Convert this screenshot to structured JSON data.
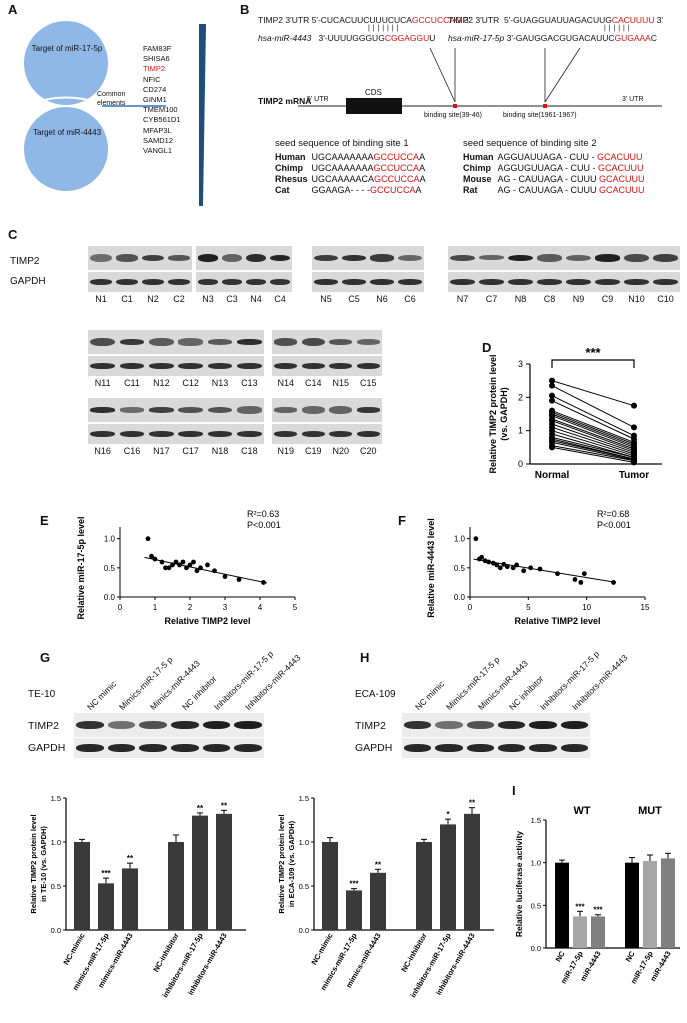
{
  "panels": {
    "A": {
      "letter": "A",
      "circle_top": "Target of miR-17-5p",
      "circle_bottom": "Target of miR-4443",
      "common_label": "Common elements",
      "genes": [
        {
          "name": "FAM83F",
          "highlight": false
        },
        {
          "name": "SHISA6",
          "highlight": false
        },
        {
          "name": "TIMP2",
          "highlight": true
        },
        {
          "name": "NFIC",
          "highlight": false
        },
        {
          "name": "CD274",
          "highlight": false
        },
        {
          "name": "GINM1",
          "highlight": false
        },
        {
          "name": "TMEM100",
          "highlight": false
        },
        {
          "name": "CYB561D1",
          "highlight": false
        },
        {
          "name": "MFAP3L",
          "highlight": false
        },
        {
          "name": "SAMD12",
          "highlight": false
        },
        {
          "name": "VANGL1",
          "highlight": false
        }
      ],
      "circle_color": "#8fb8e6"
    },
    "B": {
      "letter": "B",
      "site1": {
        "timp2_label": "TIMP2 3'UTR",
        "timp2_pre": "5'-CUCACUUCUUUCUCA",
        "timp2_red": "GCCUCCAG",
        "timp2_post": " 3'",
        "mir_label": "hsa-miR-4443",
        "mir_pre": "3'-UUUUGGGUG",
        "mir_red": "CGGAGGU",
        "mir_post": "U"
      },
      "site2": {
        "timp2_label": "TIMP2 3'UTR",
        "timp2_pre": "5'-GUAGGUAUUAGACUUG",
        "timp2_red": "CACUUUU",
        "timp2_post": " 3'",
        "mir_label": "hsa-miR-17-5p",
        "mir_pre": "3'-GAUGGACGUGACAUUC",
        "mir_red": "GUGAAA",
        "mir_post": "C"
      },
      "mrna_label": "TIMP2 mRNA",
      "utr5": "5' UTR",
      "cds": "CDS",
      "utr3": "3' UTR",
      "binding1": "binding site(39-46)",
      "binding2": "binding site(1961-1967)",
      "seed1_title": "seed sequence of binding site 1",
      "seed1_rows": [
        {
          "species": "Human",
          "pre": "UGCAAAAAAA",
          "red": "GCCUCCA",
          "post": "A"
        },
        {
          "species": "Chimp",
          "pre": "UGCAAAAAAA",
          "red": "GCCUCCA",
          "post": "A"
        },
        {
          "species": "Rhesus",
          "pre": "UGCAAAAACA",
          "red": "GCCUCCA",
          "post": "A"
        },
        {
          "species": "Cat",
          "pre": "GGAAGA- - - -",
          "red": "GCCUCCA",
          "post": "A"
        }
      ],
      "seed2_title": "seed sequence of binding site 2",
      "seed2_rows": [
        {
          "species": "Human",
          "pre": "AGGUAUUAGA - CUU - ",
          "red": "GCACUUU",
          "post": ""
        },
        {
          "species": "Chimp",
          "pre": "AGGUGUUAGA - CUU - ",
          "red": "GCACUUU",
          "post": ""
        },
        {
          "species": "Mouse",
          "pre": "AG - CAUUAGA - CUUU ",
          "red": "GCACUUU",
          "post": ""
        },
        {
          "species": "Rat",
          "pre": "AG - CAUUAGA - CUUU ",
          "red": "GCACUUU",
          "post": ""
        }
      ]
    },
    "C": {
      "letter": "C",
      "row_labels": [
        "TIMP2",
        "GAPDH"
      ],
      "blot_rows": [
        {
          "groups": [
            [
              "N1",
              "C1",
              "N2",
              "C2"
            ],
            [
              "N3",
              "C3",
              "N4",
              "C4"
            ],
            [
              "N5",
              "C5",
              "N6",
              "C6"
            ],
            [
              "N7",
              "C7",
              "N8",
              "C8",
              "N9",
              "C9",
              "N10",
              "C10"
            ]
          ]
        },
        {
          "groups": [
            [
              "N11",
              "C11",
              "N12",
              "C12",
              "N13",
              "C13"
            ],
            [
              "N14",
              "C14",
              "N15",
              "C15"
            ]
          ]
        },
        {
          "groups": [
            [
              "N16",
              "C16",
              "N17",
              "C17",
              "N18",
              "C18"
            ],
            [
              "N19",
              "C19",
              "N20",
              "C20"
            ]
          ]
        }
      ]
    },
    "D": {
      "letter": "D",
      "significance": "***",
      "ylabel": "Relative TIMP2 protein level (vs. GAPDH)",
      "xcats": [
        "Normal",
        "Tumor"
      ],
      "yticks": [
        "0",
        "1",
        "2",
        "3"
      ]
    },
    "E": {
      "letter": "E",
      "ylabel": "Relative miR-17-5p level",
      "xlabel": "Relative TIMP2 level",
      "r2": "R²=0.63",
      "p": "P<0.001",
      "xticks": [
        "0",
        "1",
        "2",
        "3",
        "4",
        "5"
      ],
      "yticks": [
        "0.0",
        "0.5",
        "1.0"
      ]
    },
    "F": {
      "letter": "F",
      "ylabel": "Relative miR-4443 level",
      "xlabel": "Relative TIMP2 level",
      "r2": "R²=0.68",
      "p": "P<0.001",
      "xticks": [
        "0",
        "5",
        "10",
        "15"
      ],
      "yticks": [
        "0.0",
        "0.5",
        "1.0"
      ]
    },
    "G": {
      "letter": "G",
      "cell_line": "TE-10",
      "lanes": [
        "NC mimic",
        "Mimics-miR-17-5 p",
        "Mimics-miR-4443",
        "NC inhibitor",
        "Inhibitors-miR-17-5 p",
        "Inhibitors-miR-4443"
      ],
      "rows": [
        "TIMP2",
        "GAPDH"
      ]
    },
    "H": {
      "letter": "H",
      "cell_line": "ECA-109",
      "lanes": [
        "NC mimic",
        "Mimics-miR-17-5 p",
        "Mimics-miR-4443",
        "NC inhibitor",
        "Inhibitors-miR-17-5 p",
        "Inhibitors-miR-4443"
      ],
      "rows": [
        "TIMP2",
        "GAPDH"
      ]
    },
    "I": {
      "letter": "I",
      "ylabel": "Relative luciferase activity",
      "wt": "WT",
      "mut": "MUT",
      "yticks": [
        "0.0",
        "0.5",
        "1.0",
        "1.5"
      ]
    }
  },
  "chart_data": [
    {
      "id": "D",
      "type": "line",
      "title": "",
      "ylabel": "Relative TIMP2 protein level (vs. GAPDH)",
      "categories": [
        "Normal",
        "Tumor"
      ],
      "ylim": [
        0,
        3
      ],
      "significance": "***",
      "pairs": [
        [
          2.5,
          1.75
        ],
        [
          2.35,
          1.1
        ],
        [
          2.05,
          0.85
        ],
        [
          1.9,
          0.75
        ],
        [
          1.6,
          0.65
        ],
        [
          1.55,
          0.6
        ],
        [
          1.5,
          0.55
        ],
        [
          1.45,
          0.5
        ],
        [
          1.35,
          0.45
        ],
        [
          1.3,
          0.4
        ],
        [
          1.2,
          0.35
        ],
        [
          1.1,
          0.3
        ],
        [
          1.0,
          0.25
        ],
        [
          0.9,
          0.2
        ],
        [
          0.8,
          0.2
        ],
        [
          0.75,
          0.15
        ],
        [
          0.7,
          0.15
        ],
        [
          0.65,
          0.12
        ],
        [
          0.55,
          0.1
        ],
        [
          0.5,
          0.05
        ]
      ]
    },
    {
      "id": "E",
      "type": "scatter",
      "title": "",
      "xlabel": "Relative TIMP2 level",
      "ylabel": "Relative miR-17-5p level",
      "xlim": [
        0,
        5
      ],
      "ylim": [
        0,
        1.2
      ],
      "x": [
        0.8,
        0.9,
        1.0,
        1.2,
        1.3,
        1.4,
        1.5,
        1.6,
        1.7,
        1.8,
        1.9,
        2.0,
        2.1,
        2.2,
        2.3,
        2.5,
        2.7,
        3.0,
        3.4,
        4.1
      ],
      "y": [
        1.0,
        0.7,
        0.65,
        0.6,
        0.5,
        0.5,
        0.55,
        0.6,
        0.55,
        0.6,
        0.5,
        0.55,
        0.6,
        0.45,
        0.5,
        0.55,
        0.45,
        0.35,
        0.3,
        0.25
      ],
      "fit": [
        [
          0.7,
          0.68
        ],
        [
          4.2,
          0.24
        ]
      ],
      "annotations": [
        "R²=0.63",
        "P<0.001"
      ]
    },
    {
      "id": "F",
      "type": "scatter",
      "title": "",
      "xlabel": "Relative TIMP2 level",
      "ylabel": "Relative miR-4443 level",
      "xlim": [
        0,
        15
      ],
      "ylim": [
        0,
        1.2
      ],
      "x": [
        0.5,
        0.8,
        1.0,
        1.3,
        1.6,
        2.0,
        2.3,
        2.6,
        2.9,
        3.2,
        3.7,
        4.0,
        4.6,
        5.2,
        6.0,
        7.5,
        9.0,
        9.5,
        9.8,
        12.3
      ],
      "y": [
        1.0,
        0.65,
        0.68,
        0.62,
        0.6,
        0.58,
        0.55,
        0.5,
        0.56,
        0.52,
        0.5,
        0.55,
        0.45,
        0.5,
        0.48,
        0.4,
        0.3,
        0.25,
        0.4,
        0.25
      ],
      "fit": [
        [
          0.3,
          0.65
        ],
        [
          12.5,
          0.25
        ]
      ],
      "annotations": [
        "R²=0.68",
        "P<0.001"
      ]
    },
    {
      "id": "G-bar",
      "type": "bar",
      "title": "",
      "ylabel": "Relative TIMP2 protein level in TE-10 (vs. GAPDH)",
      "categories": [
        "NC-mimic",
        "mimics-miR-17-5p",
        "mimics-miR-4443",
        "NC-inhibitor",
        "inhibitors-miR-17-5p",
        "inhibitors-miR-4443"
      ],
      "values": [
        1.0,
        0.53,
        0.7,
        1.0,
        1.3,
        1.32
      ],
      "errors": [
        0.03,
        0.06,
        0.06,
        0.08,
        0.03,
        0.04
      ],
      "significance": [
        "",
        "***",
        "**",
        "",
        "**",
        "**"
      ],
      "ylim": [
        0,
        1.5
      ],
      "yticks": [
        "0.0",
        "0.5",
        "1.0",
        "1.5"
      ]
    },
    {
      "id": "H-bar",
      "type": "bar",
      "title": "",
      "ylabel": "Relative TIMP2 protein level in ECA-109 (vs. GAPDH)",
      "categories": [
        "NC-mimic",
        "mimics-miR-17-5p",
        "mimics-miR-4443",
        "NC-inhibitor",
        "inhibitors-miR-17-5p",
        "inhibitors-miR-4443"
      ],
      "values": [
        1.0,
        0.45,
        0.65,
        1.0,
        1.2,
        1.32
      ],
      "errors": [
        0.05,
        0.02,
        0.04,
        0.03,
        0.06,
        0.07
      ],
      "significance": [
        "",
        "***",
        "**",
        "",
        "*",
        "**"
      ],
      "ylim": [
        0,
        1.5
      ],
      "yticks": [
        "0.0",
        "0.5",
        "1.0",
        "1.5"
      ]
    },
    {
      "id": "I",
      "type": "bar",
      "title": "",
      "ylabel": "Relative luciferase activity",
      "categories": [
        "NC",
        "miR-17-5p",
        "miR-4443",
        "NC",
        "miR-17-5p",
        "miR-4443"
      ],
      "groups": [
        "WT",
        "WT",
        "WT",
        "MUT",
        "MUT",
        "MUT"
      ],
      "values": [
        1.0,
        0.37,
        0.37,
        1.0,
        1.02,
        1.05
      ],
      "errors": [
        0.03,
        0.06,
        0.02,
        0.06,
        0.07,
        0.06
      ],
      "significance": [
        "",
        "***",
        "***",
        "",
        "",
        ""
      ],
      "colors": [
        "#000000",
        "#a6a6a6",
        "#808080",
        "#000000",
        "#a6a6a6",
        "#808080"
      ],
      "ylim": [
        0,
        1.5
      ],
      "yticks": [
        "0.0",
        "0.5",
        "1.0",
        "1.5"
      ]
    }
  ]
}
